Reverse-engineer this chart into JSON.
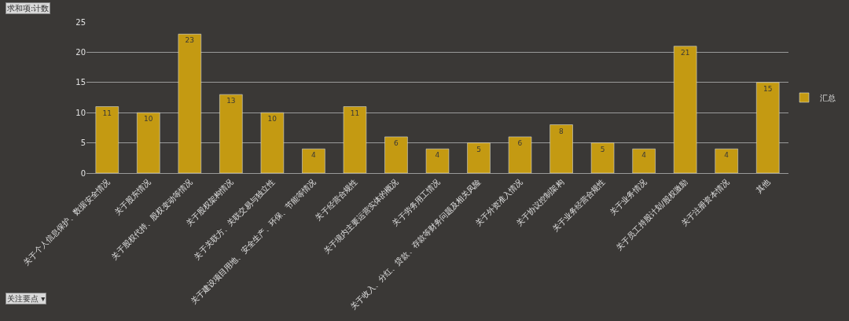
{
  "chart_data": {
    "type": "bar",
    "categories": [
      "关于个人信息保护、数据安全情况",
      "关于股东情况",
      "关于股权代持、股权变动等情况",
      "关于股权架构情况",
      "关于关联方、关联交易与独立性",
      "关于建设项目用地、安全生产、环保、节能等情况",
      "关于经营合规性",
      "关于境内主要运营实体的概况",
      "关于劳务用工情况",
      "关于收入、分红、贷款、存款等财务问题及相关风险",
      "关于外资准入情况",
      "关于协议控制架构",
      "关于业务经营合规性",
      "关于业务情况",
      "关于员工持股计划/股权激励",
      "关于注册资本情况",
      "其他"
    ],
    "series": [
      {
        "name": "汇总",
        "color": "#c49a12",
        "values": [
          11,
          10,
          23,
          13,
          10,
          4,
          11,
          6,
          4,
          5,
          6,
          8,
          5,
          4,
          21,
          4,
          15
        ]
      }
    ],
    "ylim": [
      0,
      25
    ],
    "yticks": [
      0,
      5,
      10,
      15,
      20,
      25
    ],
    "grid": "y",
    "legend": "right",
    "data_labels": true,
    "annotations": [
      "求和项:计数",
      "关注要点 ▾"
    ]
  }
}
